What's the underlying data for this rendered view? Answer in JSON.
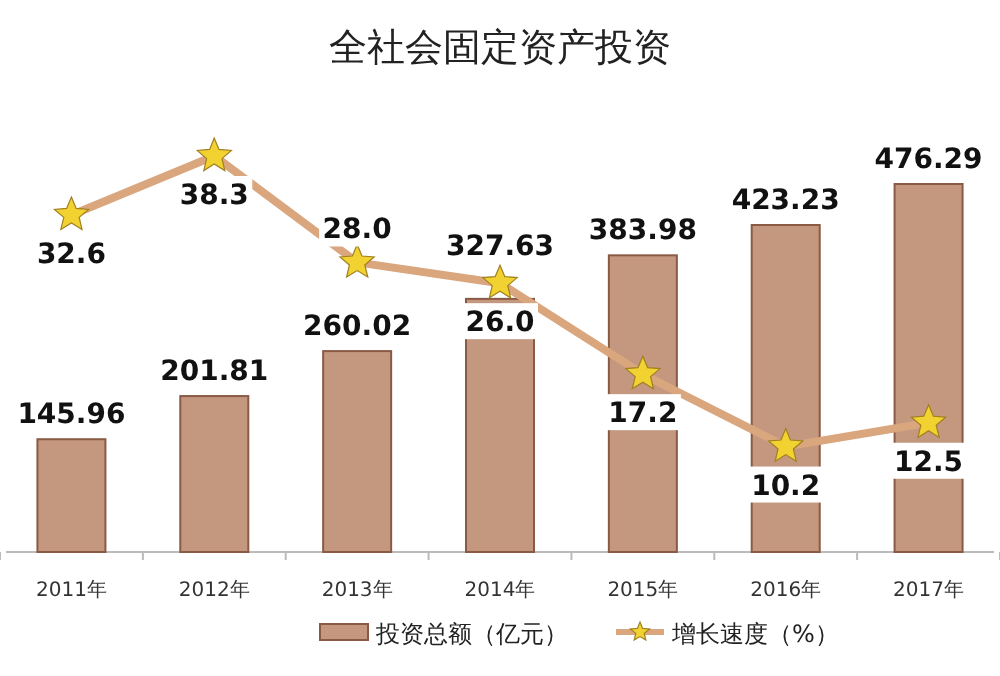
{
  "chart_data": {
    "type": "bar",
    "title": "全社会固定资产投资",
    "categories": [
      "2011年",
      "2012年",
      "2013年",
      "2014年",
      "2015年",
      "2016年",
      "2017年"
    ],
    "series": [
      {
        "name": "投资总额（亿元）",
        "color": "#c4977f",
        "values": [
          145.96,
          201.81,
          260.02,
          327.63,
          383.98,
          423.23,
          476.29
        ]
      },
      {
        "name": "增长速度（%）",
        "type": "line",
        "axis": "y2",
        "color": "#d9a67e",
        "marker": "star",
        "values": [
          32.6,
          38.3,
          28.0,
          26.0,
          17.2,
          10.2,
          12.5
        ],
        "value_labels": [
          "32.6",
          "38.3",
          "28.0",
          "26.0",
          "17.2",
          "10.2",
          "12.5"
        ]
      }
    ],
    "data_labels": true,
    "legend": "bottom"
  }
}
